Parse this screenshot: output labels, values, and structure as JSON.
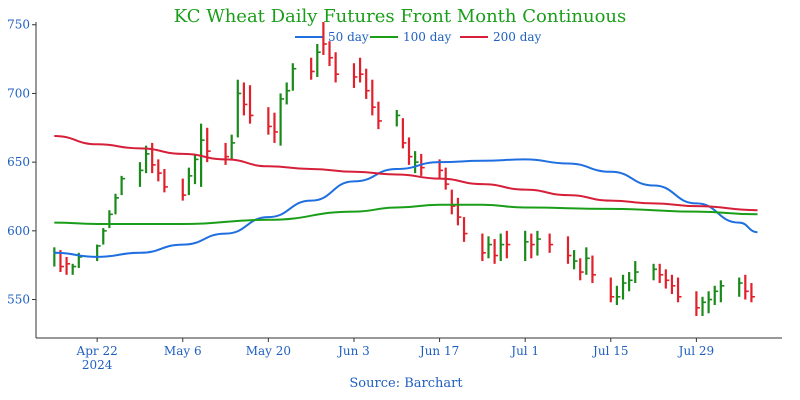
{
  "chart_data": {
    "type": "ohlc",
    "title": "KC Wheat Daily Futures Front Month Continuous",
    "source": "Source: Barchart",
    "ylim": [
      522,
      752
    ],
    "y_ticks": [
      550,
      600,
      650,
      700,
      750
    ],
    "xlim": [
      "2024-04-12",
      "2024-08-12"
    ],
    "x_ticks": [
      {
        "date": "2024-04-22",
        "label": "Apr 22",
        "sublabel": "2024"
      },
      {
        "date": "2024-05-06",
        "label": "May 6",
        "sublabel": ""
      },
      {
        "date": "2024-05-20",
        "label": "May 20",
        "sublabel": ""
      },
      {
        "date": "2024-06-03",
        "label": "Jun 3",
        "sublabel": ""
      },
      {
        "date": "2024-06-17",
        "label": "Jun 17",
        "sublabel": ""
      },
      {
        "date": "2024-07-01",
        "label": "Jul 1",
        "sublabel": ""
      },
      {
        "date": "2024-07-15",
        "label": "Jul 15",
        "sublabel": ""
      },
      {
        "date": "2024-07-29",
        "label": "Jul 29",
        "sublabel": ""
      }
    ],
    "up_color": "#1a8a1a",
    "down_color": "#e0202a",
    "legend": [
      {
        "name": "50 day",
        "color": "#1f6fe0"
      },
      {
        "name": "100 day",
        "color": "#1a9e1a"
      },
      {
        "name": "200 day",
        "color": "#d6203a"
      }
    ],
    "ohlc": [
      {
        "date": "2024-04-15",
        "high": 588,
        "low": 574,
        "close": 584,
        "up": true
      },
      {
        "date": "2024-04-16",
        "high": 586,
        "low": 570,
        "close": 574,
        "up": false
      },
      {
        "date": "2024-04-17",
        "high": 581,
        "low": 568,
        "close": 576,
        "up": false
      },
      {
        "date": "2024-04-18",
        "high": 576,
        "low": 568,
        "close": 574,
        "up": true
      },
      {
        "date": "2024-04-19",
        "high": 584,
        "low": 573,
        "close": 581,
        "up": true
      },
      {
        "date": "2024-04-22",
        "high": 590,
        "low": 578,
        "close": 589,
        "up": true
      },
      {
        "date": "2024-04-23",
        "high": 602,
        "low": 590,
        "close": 600,
        "up": true
      },
      {
        "date": "2024-04-24",
        "high": 615,
        "low": 602,
        "close": 612,
        "up": true
      },
      {
        "date": "2024-04-25",
        "high": 627,
        "low": 612,
        "close": 624,
        "up": true
      },
      {
        "date": "2024-04-26",
        "high": 640,
        "low": 626,
        "close": 638,
        "up": true
      },
      {
        "date": "2024-04-29",
        "high": 650,
        "low": 632,
        "close": 644,
        "up": true
      },
      {
        "date": "2024-04-30",
        "high": 662,
        "low": 642,
        "close": 656,
        "up": true
      },
      {
        "date": "2024-05-01",
        "high": 664,
        "low": 642,
        "close": 648,
        "up": false
      },
      {
        "date": "2024-05-02",
        "high": 652,
        "low": 636,
        "close": 642,
        "up": false
      },
      {
        "date": "2024-05-03",
        "high": 645,
        "low": 628,
        "close": 632,
        "up": false
      },
      {
        "date": "2024-05-06",
        "high": 638,
        "low": 622,
        "close": 626,
        "up": false
      },
      {
        "date": "2024-05-07",
        "high": 646,
        "low": 626,
        "close": 640,
        "up": true
      },
      {
        "date": "2024-05-08",
        "high": 656,
        "low": 634,
        "close": 652,
        "up": true
      },
      {
        "date": "2024-05-09",
        "high": 678,
        "low": 632,
        "close": 666,
        "up": true
      },
      {
        "date": "2024-05-10",
        "high": 675,
        "low": 650,
        "close": 658,
        "up": false
      },
      {
        "date": "2024-05-13",
        "high": 664,
        "low": 648,
        "close": 654,
        "up": false
      },
      {
        "date": "2024-05-14",
        "high": 670,
        "low": 652,
        "close": 664,
        "up": true
      },
      {
        "date": "2024-05-15",
        "high": 710,
        "low": 668,
        "close": 700,
        "up": true
      },
      {
        "date": "2024-05-16",
        "high": 708,
        "low": 684,
        "close": 692,
        "up": false
      },
      {
        "date": "2024-05-17",
        "high": 706,
        "low": 678,
        "close": 684,
        "up": false
      },
      {
        "date": "2024-05-20",
        "high": 690,
        "low": 670,
        "close": 676,
        "up": false
      },
      {
        "date": "2024-05-21",
        "high": 686,
        "low": 664,
        "close": 672,
        "up": false
      },
      {
        "date": "2024-05-22",
        "high": 700,
        "low": 662,
        "close": 696,
        "up": true
      },
      {
        "date": "2024-05-23",
        "high": 708,
        "low": 692,
        "close": 702,
        "up": true
      },
      {
        "date": "2024-05-24",
        "high": 722,
        "low": 702,
        "close": 718,
        "up": true
      },
      {
        "date": "2024-05-27",
        "high": 726,
        "low": 710,
        "close": 716,
        "up": false
      },
      {
        "date": "2024-05-28",
        "high": 736,
        "low": 712,
        "close": 730,
        "up": true
      },
      {
        "date": "2024-05-29",
        "high": 752,
        "low": 728,
        "close": 736,
        "up": false
      },
      {
        "date": "2024-05-30",
        "high": 738,
        "low": 720,
        "close": 726,
        "up": false
      },
      {
        "date": "2024-05-31",
        "high": 730,
        "low": 708,
        "close": 714,
        "up": false
      },
      {
        "date": "2024-06-03",
        "high": 722,
        "low": 704,
        "close": 712,
        "up": false
      },
      {
        "date": "2024-06-04",
        "high": 726,
        "low": 708,
        "close": 714,
        "up": false
      },
      {
        "date": "2024-06-05",
        "high": 718,
        "low": 696,
        "close": 702,
        "up": false
      },
      {
        "date": "2024-06-06",
        "high": 710,
        "low": 684,
        "close": 690,
        "up": false
      },
      {
        "date": "2024-06-07",
        "high": 694,
        "low": 674,
        "close": 680,
        "up": false
      },
      {
        "date": "2024-06-10",
        "high": 688,
        "low": 676,
        "close": 684,
        "up": true
      },
      {
        "date": "2024-06-11",
        "high": 682,
        "low": 660,
        "close": 664,
        "up": false
      },
      {
        "date": "2024-06-12",
        "high": 668,
        "low": 648,
        "close": 654,
        "up": false
      },
      {
        "date": "2024-06-13",
        "high": 658,
        "low": 642,
        "close": 650,
        "up": true
      },
      {
        "date": "2024-06-14",
        "high": 656,
        "low": 640,
        "close": 646,
        "up": false
      },
      {
        "date": "2024-06-17",
        "high": 652,
        "low": 638,
        "close": 644,
        "up": false
      },
      {
        "date": "2024-06-18",
        "high": 646,
        "low": 630,
        "close": 634,
        "up": false
      },
      {
        "date": "2024-06-19",
        "high": 630,
        "low": 612,
        "close": 618,
        "up": false
      },
      {
        "date": "2024-06-20",
        "high": 624,
        "low": 604,
        "close": 610,
        "up": false
      },
      {
        "date": "2024-06-21",
        "high": 610,
        "low": 592,
        "close": 598,
        "up": false
      },
      {
        "date": "2024-06-24",
        "high": 598,
        "low": 578,
        "close": 584,
        "up": false
      },
      {
        "date": "2024-06-25",
        "high": 596,
        "low": 580,
        "close": 590,
        "up": true
      },
      {
        "date": "2024-06-26",
        "high": 594,
        "low": 576,
        "close": 582,
        "up": false
      },
      {
        "date": "2024-06-27",
        "high": 598,
        "low": 578,
        "close": 590,
        "up": true
      },
      {
        "date": "2024-06-28",
        "high": 600,
        "low": 580,
        "close": 590,
        "up": false
      },
      {
        "date": "2024-07-01",
        "high": 600,
        "low": 578,
        "close": 592,
        "up": true
      },
      {
        "date": "2024-07-02",
        "high": 598,
        "low": 580,
        "close": 590,
        "up": false
      },
      {
        "date": "2024-07-03",
        "high": 600,
        "low": 582,
        "close": 594,
        "up": true
      },
      {
        "date": "2024-07-05",
        "high": 598,
        "low": 584,
        "close": 590,
        "up": false
      },
      {
        "date": "2024-07-08",
        "high": 596,
        "low": 576,
        "close": 582,
        "up": false
      },
      {
        "date": "2024-07-09",
        "high": 586,
        "low": 572,
        "close": 578,
        "up": true
      },
      {
        "date": "2024-07-10",
        "high": 580,
        "low": 564,
        "close": 570,
        "up": false
      },
      {
        "date": "2024-07-11",
        "high": 588,
        "low": 568,
        "close": 580,
        "up": true
      },
      {
        "date": "2024-07-12",
        "high": 582,
        "low": 562,
        "close": 568,
        "up": false
      },
      {
        "date": "2024-07-15",
        "high": 566,
        "low": 548,
        "close": 552,
        "up": false
      },
      {
        "date": "2024-07-16",
        "high": 560,
        "low": 546,
        "close": 552,
        "up": true
      },
      {
        "date": "2024-07-17",
        "high": 568,
        "low": 550,
        "close": 562,
        "up": true
      },
      {
        "date": "2024-07-18",
        "high": 570,
        "low": 556,
        "close": 564,
        "up": true
      },
      {
        "date": "2024-07-19",
        "high": 578,
        "low": 562,
        "close": 570,
        "up": true
      },
      {
        "date": "2024-07-22",
        "high": 576,
        "low": 564,
        "close": 572,
        "up": true
      },
      {
        "date": "2024-07-23",
        "high": 576,
        "low": 562,
        "close": 568,
        "up": false
      },
      {
        "date": "2024-07-24",
        "high": 572,
        "low": 558,
        "close": 564,
        "up": false
      },
      {
        "date": "2024-07-25",
        "high": 568,
        "low": 554,
        "close": 560,
        "up": false
      },
      {
        "date": "2024-07-26",
        "high": 566,
        "low": 548,
        "close": 552,
        "up": false
      },
      {
        "date": "2024-07-29",
        "high": 556,
        "low": 538,
        "close": 544,
        "up": false
      },
      {
        "date": "2024-07-30",
        "high": 552,
        "low": 538,
        "close": 548,
        "up": true
      },
      {
        "date": "2024-07-31",
        "high": 556,
        "low": 540,
        "close": 550,
        "up": true
      },
      {
        "date": "2024-08-01",
        "high": 560,
        "low": 546,
        "close": 556,
        "up": true
      },
      {
        "date": "2024-08-02",
        "high": 564,
        "low": 548,
        "close": 560,
        "up": true
      },
      {
        "date": "2024-08-05",
        "high": 566,
        "low": 552,
        "close": 562,
        "up": true
      },
      {
        "date": "2024-08-06",
        "high": 568,
        "low": 550,
        "close": 556,
        "up": false
      },
      {
        "date": "2024-08-07",
        "high": 562,
        "low": 548,
        "close": 552,
        "up": false
      }
    ],
    "series": [
      {
        "name": "50 day",
        "color": "#1f6fe0",
        "points": [
          [
            "2024-04-15",
            584
          ],
          [
            "2024-04-22",
            581
          ],
          [
            "2024-04-29",
            584
          ],
          [
            "2024-05-06",
            590
          ],
          [
            "2024-05-13",
            598
          ],
          [
            "2024-05-20",
            610
          ],
          [
            "2024-05-27",
            622
          ],
          [
            "2024-06-03",
            636
          ],
          [
            "2024-06-10",
            645
          ],
          [
            "2024-06-17",
            650
          ],
          [
            "2024-06-24",
            651
          ],
          [
            "2024-07-01",
            652
          ],
          [
            "2024-07-08",
            649
          ],
          [
            "2024-07-15",
            643
          ],
          [
            "2024-07-22",
            633
          ],
          [
            "2024-07-29",
            620
          ],
          [
            "2024-08-05",
            606
          ],
          [
            "2024-08-08",
            599
          ]
        ]
      },
      {
        "name": "100 day",
        "color": "#1a9e1a",
        "points": [
          [
            "2024-04-15",
            606
          ],
          [
            "2024-04-22",
            605
          ],
          [
            "2024-05-06",
            605
          ],
          [
            "2024-05-20",
            608
          ],
          [
            "2024-06-03",
            614
          ],
          [
            "2024-06-10",
            617
          ],
          [
            "2024-06-17",
            619
          ],
          [
            "2024-06-24",
            619
          ],
          [
            "2024-07-01",
            617
          ],
          [
            "2024-07-15",
            616
          ],
          [
            "2024-07-29",
            614
          ],
          [
            "2024-08-08",
            612
          ]
        ]
      },
      {
        "name": "200 day",
        "color": "#d6203a",
        "points": [
          [
            "2024-04-15",
            669
          ],
          [
            "2024-04-22",
            663
          ],
          [
            "2024-04-29",
            660
          ],
          [
            "2024-05-06",
            656
          ],
          [
            "2024-05-13",
            652
          ],
          [
            "2024-05-20",
            647
          ],
          [
            "2024-05-27",
            645
          ],
          [
            "2024-06-03",
            643
          ],
          [
            "2024-06-10",
            641
          ],
          [
            "2024-06-17",
            638
          ],
          [
            "2024-06-24",
            634
          ],
          [
            "2024-07-01",
            630
          ],
          [
            "2024-07-08",
            626
          ],
          [
            "2024-07-15",
            622
          ],
          [
            "2024-07-22",
            620
          ],
          [
            "2024-07-29",
            618
          ],
          [
            "2024-08-08",
            615
          ]
        ]
      }
    ]
  }
}
